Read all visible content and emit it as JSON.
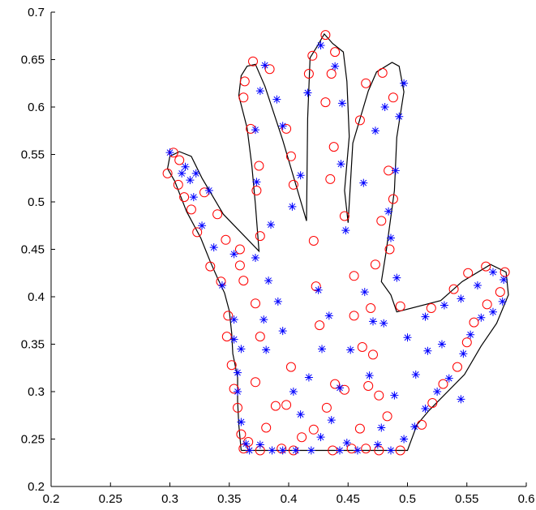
{
  "colors": {
    "axis": "#000000",
    "outline": "#000000",
    "circle_series": "#ff0000",
    "star_series": "#0000ff"
  },
  "chart_data": {
    "type": "scatter",
    "title": "",
    "xlabel": "",
    "ylabel": "",
    "xlim": [
      0.2,
      0.6
    ],
    "ylim": [
      0.2,
      0.7
    ],
    "x_ticks": [
      0.2,
      0.25,
      0.3,
      0.35,
      0.4,
      0.45,
      0.5,
      0.55,
      0.6
    ],
    "y_ticks": [
      0.2,
      0.25,
      0.3,
      0.35,
      0.4,
      0.45,
      0.5,
      0.55,
      0.6,
      0.65,
      0.7
    ],
    "x_tick_labels": [
      "0.2",
      "0.25",
      "0.3",
      "0.35",
      "0.4",
      "0.45",
      "0.5",
      "0.55",
      "0.6"
    ],
    "y_tick_labels": [
      "0.2",
      "0.25",
      "0.3",
      "0.35",
      "0.4",
      "0.45",
      "0.5",
      "0.55",
      "0.6",
      "0.65",
      "0.7"
    ],
    "grid": false,
    "legend": "none",
    "outline": {
      "marker": "line",
      "color": "#000000",
      "points": [
        [
          0.36,
          0.238
        ],
        [
          0.5,
          0.238
        ],
        [
          0.508,
          0.265
        ],
        [
          0.518,
          0.28
        ],
        [
          0.548,
          0.318
        ],
        [
          0.562,
          0.348
        ],
        [
          0.575,
          0.372
        ],
        [
          0.585,
          0.402
        ],
        [
          0.583,
          0.426
        ],
        [
          0.57,
          0.434
        ],
        [
          0.546,
          0.416
        ],
        [
          0.528,
          0.396
        ],
        [
          0.491,
          0.384
        ],
        [
          0.486,
          0.402
        ],
        [
          0.478,
          0.416
        ],
        [
          0.482,
          0.447
        ],
        [
          0.489,
          0.512
        ],
        [
          0.491,
          0.568
        ],
        [
          0.497,
          0.616
        ],
        [
          0.493,
          0.643
        ],
        [
          0.487,
          0.647
        ],
        [
          0.474,
          0.637
        ],
        [
          0.467,
          0.617
        ],
        [
          0.454,
          0.562
        ],
        [
          0.45,
          0.478
        ],
        [
          0.447,
          0.512
        ],
        [
          0.451,
          0.569
        ],
        [
          0.449,
          0.627
        ],
        [
          0.446,
          0.658
        ],
        [
          0.437,
          0.667
        ],
        [
          0.43,
          0.677
        ],
        [
          0.424,
          0.664
        ],
        [
          0.418,
          0.652
        ],
        [
          0.416,
          0.588
        ],
        [
          0.415,
          0.48
        ],
        [
          0.395,
          0.565
        ],
        [
          0.38,
          0.622
        ],
        [
          0.372,
          0.645
        ],
        [
          0.365,
          0.643
        ],
        [
          0.36,
          0.633
        ],
        [
          0.358,
          0.612
        ],
        [
          0.365,
          0.578
        ],
        [
          0.369,
          0.538
        ],
        [
          0.372,
          0.497
        ],
        [
          0.375,
          0.448
        ],
        [
          0.345,
          0.487
        ],
        [
          0.327,
          0.525
        ],
        [
          0.318,
          0.548
        ],
        [
          0.308,
          0.553
        ],
        [
          0.3,
          0.548
        ],
        [
          0.298,
          0.535
        ],
        [
          0.304,
          0.522
        ],
        [
          0.314,
          0.49
        ],
        [
          0.326,
          0.462
        ],
        [
          0.334,
          0.437
        ],
        [
          0.34,
          0.42
        ],
        [
          0.346,
          0.404
        ],
        [
          0.35,
          0.385
        ],
        [
          0.352,
          0.362
        ],
        [
          0.353,
          0.34
        ],
        [
          0.357,
          0.315
        ],
        [
          0.357,
          0.29
        ],
        [
          0.358,
          0.265
        ],
        [
          0.36,
          0.238
        ]
      ]
    },
    "series": [
      {
        "marker": "circle",
        "color": "#ff0000",
        "points": [
          [
            0.303,
            0.552
          ],
          [
            0.308,
            0.544
          ],
          [
            0.298,
            0.53
          ],
          [
            0.307,
            0.518
          ],
          [
            0.318,
            0.492
          ],
          [
            0.323,
            0.468
          ],
          [
            0.312,
            0.505
          ],
          [
            0.329,
            0.51
          ],
          [
            0.34,
            0.487
          ],
          [
            0.347,
            0.46
          ],
          [
            0.334,
            0.432
          ],
          [
            0.343,
            0.416
          ],
          [
            0.349,
            0.38
          ],
          [
            0.348,
            0.358
          ],
          [
            0.352,
            0.328
          ],
          [
            0.354,
            0.303
          ],
          [
            0.357,
            0.283
          ],
          [
            0.36,
            0.255
          ],
          [
            0.362,
            0.24
          ],
          [
            0.366,
            0.247
          ],
          [
            0.376,
            0.238
          ],
          [
            0.381,
            0.262
          ],
          [
            0.394,
            0.24
          ],
          [
            0.404,
            0.238
          ],
          [
            0.421,
            0.26
          ],
          [
            0.437,
            0.238
          ],
          [
            0.453,
            0.24
          ],
          [
            0.465,
            0.24
          ],
          [
            0.476,
            0.238
          ],
          [
            0.494,
            0.238
          ],
          [
            0.512,
            0.265
          ],
          [
            0.521,
            0.288
          ],
          [
            0.53,
            0.308
          ],
          [
            0.542,
            0.326
          ],
          [
            0.55,
            0.352
          ],
          [
            0.556,
            0.373
          ],
          [
            0.567,
            0.392
          ],
          [
            0.578,
            0.405
          ],
          [
            0.582,
            0.426
          ],
          [
            0.566,
            0.432
          ],
          [
            0.551,
            0.425
          ],
          [
            0.539,
            0.408
          ],
          [
            0.52,
            0.388
          ],
          [
            0.494,
            0.39
          ],
          [
            0.469,
            0.388
          ],
          [
            0.478,
            0.48
          ],
          [
            0.485,
            0.45
          ],
          [
            0.488,
            0.503
          ],
          [
            0.484,
            0.533
          ],
          [
            0.488,
            0.61
          ],
          [
            0.479,
            0.636
          ],
          [
            0.465,
            0.625
          ],
          [
            0.46,
            0.586
          ],
          [
            0.447,
            0.485
          ],
          [
            0.435,
            0.524
          ],
          [
            0.438,
            0.558
          ],
          [
            0.431,
            0.605
          ],
          [
            0.436,
            0.635
          ],
          [
            0.439,
            0.658
          ],
          [
            0.431,
            0.676
          ],
          [
            0.42,
            0.654
          ],
          [
            0.417,
            0.635
          ],
          [
            0.404,
            0.518
          ],
          [
            0.402,
            0.548
          ],
          [
            0.398,
            0.577
          ],
          [
            0.384,
            0.64
          ],
          [
            0.37,
            0.648
          ],
          [
            0.363,
            0.627
          ],
          [
            0.362,
            0.61
          ],
          [
            0.368,
            0.577
          ],
          [
            0.375,
            0.538
          ],
          [
            0.373,
            0.512
          ],
          [
            0.376,
            0.464
          ],
          [
            0.359,
            0.45
          ],
          [
            0.359,
            0.433
          ],
          [
            0.362,
            0.417
          ],
          [
            0.372,
            0.393
          ],
          [
            0.376,
            0.358
          ],
          [
            0.372,
            0.31
          ],
          [
            0.389,
            0.285
          ],
          [
            0.402,
            0.326
          ],
          [
            0.421,
            0.459
          ],
          [
            0.423,
            0.411
          ],
          [
            0.426,
            0.37
          ],
          [
            0.432,
            0.283
          ],
          [
            0.439,
            0.308
          ],
          [
            0.455,
            0.422
          ],
          [
            0.455,
            0.38
          ],
          [
            0.462,
            0.347
          ],
          [
            0.471,
            0.339
          ],
          [
            0.476,
            0.296
          ],
          [
            0.483,
            0.274
          ],
          [
            0.473,
            0.434
          ],
          [
            0.46,
            0.261
          ],
          [
            0.447,
            0.302
          ],
          [
            0.411,
            0.252
          ],
          [
            0.398,
            0.286
          ],
          [
            0.467,
            0.306
          ]
        ]
      },
      {
        "marker": "star",
        "color": "#0000ff",
        "points": [
          [
            0.3,
            0.552
          ],
          [
            0.31,
            0.53
          ],
          [
            0.313,
            0.537
          ],
          [
            0.317,
            0.523
          ],
          [
            0.32,
            0.505
          ],
          [
            0.327,
            0.475
          ],
          [
            0.333,
            0.512
          ],
          [
            0.322,
            0.53
          ],
          [
            0.337,
            0.452
          ],
          [
            0.354,
            0.445
          ],
          [
            0.344,
            0.412
          ],
          [
            0.354,
            0.376
          ],
          [
            0.354,
            0.355
          ],
          [
            0.36,
            0.345
          ],
          [
            0.357,
            0.32
          ],
          [
            0.357,
            0.3
          ],
          [
            0.36,
            0.268
          ],
          [
            0.364,
            0.245
          ],
          [
            0.367,
            0.238
          ],
          [
            0.376,
            0.244
          ],
          [
            0.386,
            0.238
          ],
          [
            0.395,
            0.238
          ],
          [
            0.406,
            0.238
          ],
          [
            0.419,
            0.238
          ],
          [
            0.427,
            0.252
          ],
          [
            0.443,
            0.238
          ],
          [
            0.449,
            0.246
          ],
          [
            0.458,
            0.238
          ],
          [
            0.475,
            0.244
          ],
          [
            0.486,
            0.238
          ],
          [
            0.497,
            0.25
          ],
          [
            0.506,
            0.263
          ],
          [
            0.515,
            0.282
          ],
          [
            0.525,
            0.3
          ],
          [
            0.535,
            0.314
          ],
          [
            0.547,
            0.34
          ],
          [
            0.553,
            0.36
          ],
          [
            0.562,
            0.378
          ],
          [
            0.572,
            0.384
          ],
          [
            0.58,
            0.395
          ],
          [
            0.581,
            0.418
          ],
          [
            0.572,
            0.426
          ],
          [
            0.559,
            0.412
          ],
          [
            0.545,
            0.398
          ],
          [
            0.531,
            0.391
          ],
          [
            0.48,
            0.372
          ],
          [
            0.491,
            0.42
          ],
          [
            0.486,
            0.462
          ],
          [
            0.484,
            0.49
          ],
          [
            0.49,
            0.533
          ],
          [
            0.493,
            0.59
          ],
          [
            0.497,
            0.625
          ],
          [
            0.481,
            0.6
          ],
          [
            0.473,
            0.575
          ],
          [
            0.463,
            0.52
          ],
          [
            0.448,
            0.47
          ],
          [
            0.444,
            0.54
          ],
          [
            0.445,
            0.604
          ],
          [
            0.439,
            0.643
          ],
          [
            0.427,
            0.665
          ],
          [
            0.416,
            0.615
          ],
          [
            0.41,
            0.528
          ],
          [
            0.403,
            0.495
          ],
          [
            0.395,
            0.58
          ],
          [
            0.39,
            0.608
          ],
          [
            0.38,
            0.644
          ],
          [
            0.376,
            0.617
          ],
          [
            0.372,
            0.576
          ],
          [
            0.373,
            0.521
          ],
          [
            0.385,
            0.476
          ],
          [
            0.372,
            0.441
          ],
          [
            0.383,
            0.417
          ],
          [
            0.379,
            0.376
          ],
          [
            0.381,
            0.344
          ],
          [
            0.391,
            0.395
          ],
          [
            0.395,
            0.364
          ],
          [
            0.404,
            0.3
          ],
          [
            0.41,
            0.276
          ],
          [
            0.417,
            0.315
          ],
          [
            0.425,
            0.407
          ],
          [
            0.428,
            0.345
          ],
          [
            0.434,
            0.38
          ],
          [
            0.436,
            0.27
          ],
          [
            0.443,
            0.304
          ],
          [
            0.452,
            0.344
          ],
          [
            0.464,
            0.405
          ],
          [
            0.471,
            0.374
          ],
          [
            0.468,
            0.317
          ],
          [
            0.478,
            0.262
          ],
          [
            0.489,
            0.296
          ],
          [
            0.5,
            0.357
          ],
          [
            0.507,
            0.318
          ],
          [
            0.515,
            0.379
          ],
          [
            0.529,
            0.35
          ],
          [
            0.545,
            0.292
          ],
          [
            0.517,
            0.343
          ]
        ]
      }
    ]
  }
}
